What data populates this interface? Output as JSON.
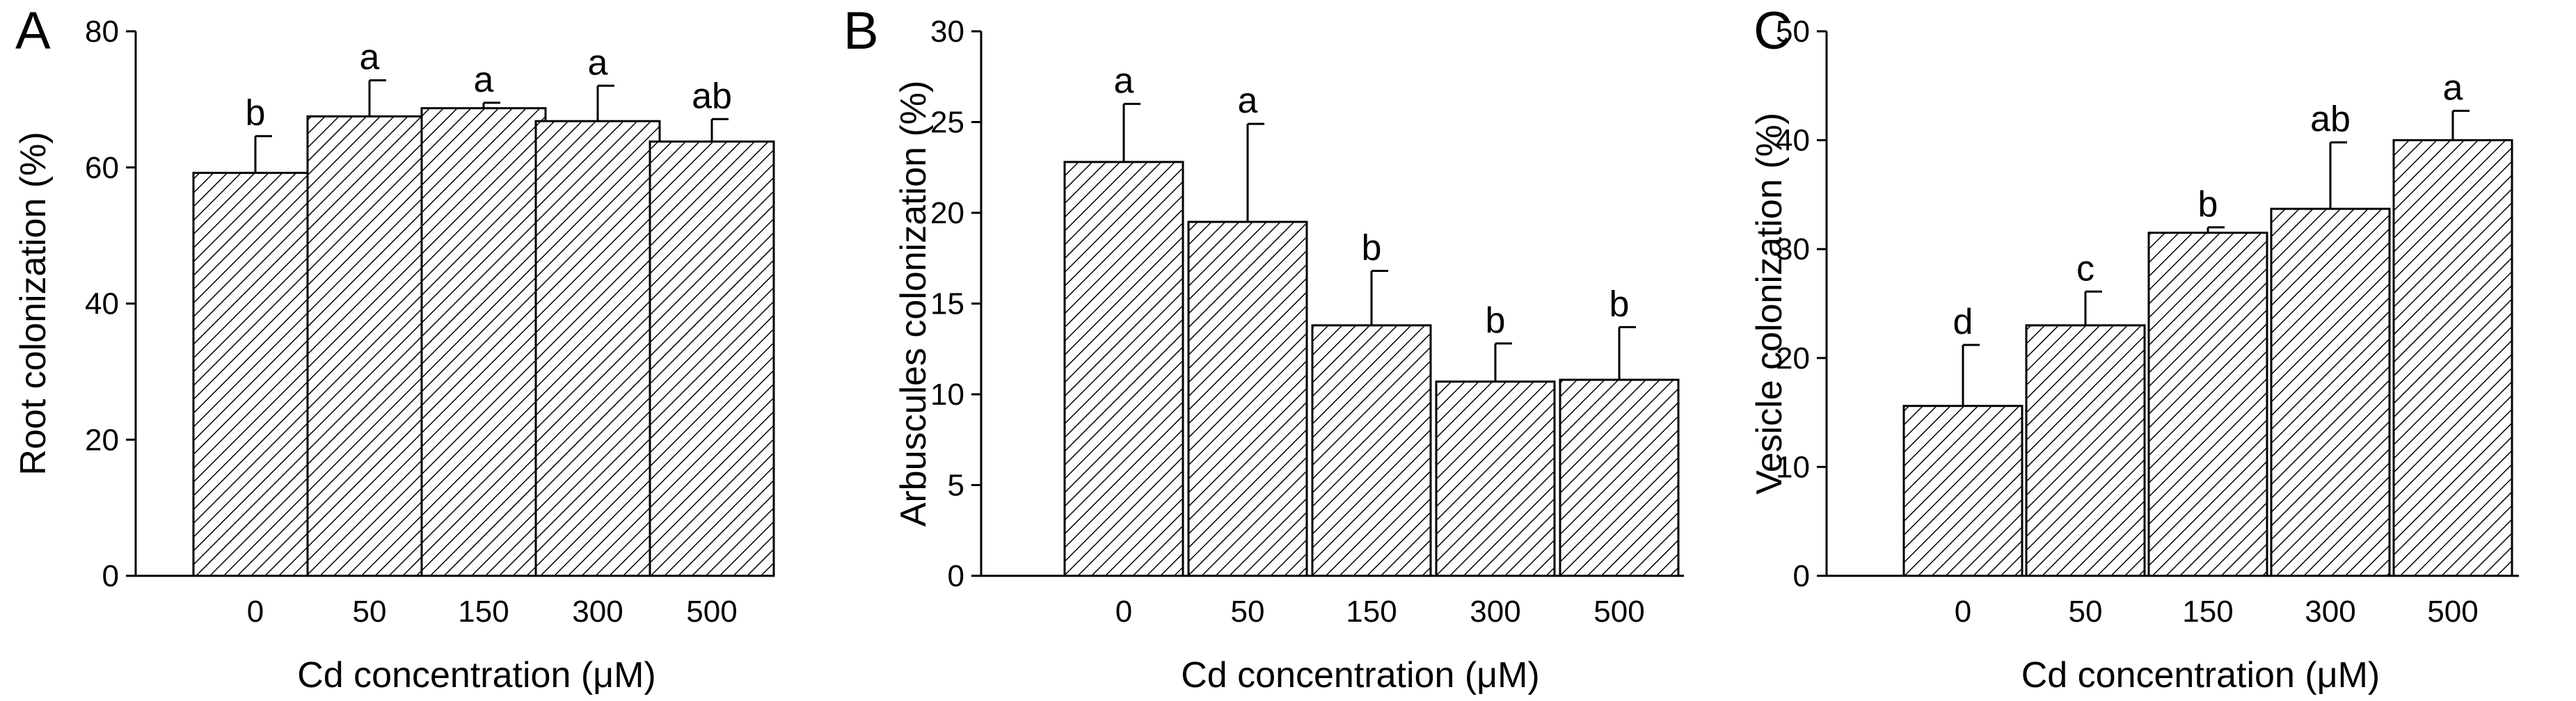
{
  "chart_data": [
    {
      "type": "bar",
      "panel": "A",
      "categories": [
        "0",
        "50",
        "150",
        "300",
        "500"
      ],
      "values": [
        59.2,
        67.5,
        68.7,
        66.8,
        63.8
      ],
      "errors": [
        5.4,
        5.3,
        0.8,
        5.2,
        3.3
      ],
      "significance": [
        "b",
        "a",
        "a",
        "a",
        "ab"
      ],
      "xlabel": "Cd concentration  (μM)",
      "ylabel": "Root colonization  (%)",
      "ylim": [
        0,
        80
      ],
      "yticks": [
        "0",
        "20",
        "40",
        "60",
        "80"
      ]
    },
    {
      "type": "bar",
      "panel": "B",
      "categories": [
        "0",
        "50",
        "150",
        "300",
        "500"
      ],
      "values": [
        22.8,
        19.5,
        13.8,
        10.7,
        10.8
      ],
      "errors": [
        3.2,
        5.4,
        3.0,
        2.1,
        2.9
      ],
      "significance": [
        "a",
        "a",
        "b",
        "b",
        "b"
      ],
      "xlabel": "Cd concentration  (μM)",
      "ylabel": "Arbuscules colonization  (%)",
      "ylim": [
        0,
        30
      ],
      "yticks": [
        "0",
        "5",
        "10",
        "15",
        "20",
        "25",
        "30"
      ]
    },
    {
      "type": "bar",
      "panel": "C",
      "categories": [
        "0",
        "50",
        "150",
        "300",
        "500"
      ],
      "values": [
        15.6,
        23.0,
        31.5,
        33.7,
        40.0
      ],
      "errors": [
        5.6,
        3.1,
        0.5,
        6.1,
        2.7
      ],
      "significance": [
        "d",
        "c",
        "b",
        "ab",
        "a"
      ],
      "xlabel": "Cd concentration  (μM)",
      "ylabel": "Vesicle colonization  (%)",
      "ylim": [
        0,
        50
      ],
      "yticks": [
        "0",
        "10",
        "20",
        "30",
        "40",
        "50"
      ]
    }
  ]
}
